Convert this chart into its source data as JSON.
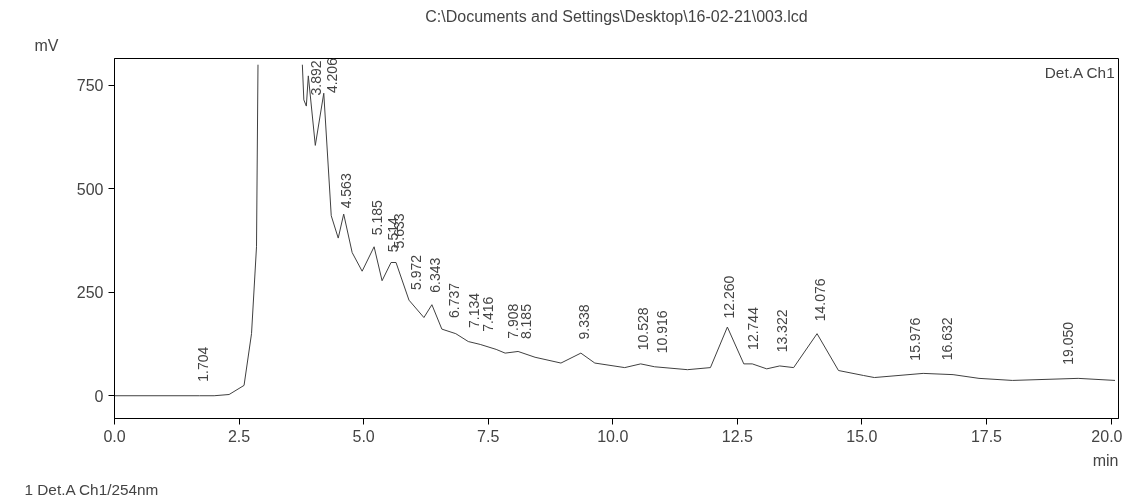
{
  "chart_data": {
    "type": "line",
    "title": "C:\\Documents and Settings\\Desktop\\16-02-21\\003.lcd",
    "xlabel": "min",
    "ylabel": "mV",
    "x": [
      0,
      1.704,
      2.0,
      2.3,
      2.6,
      2.75,
      2.85,
      2.88,
      3.3,
      3.77,
      3.8,
      3.85,
      3.89,
      4.03,
      4.2,
      4.35,
      4.49,
      4.6,
      4.77,
      4.97,
      5.21,
      5.37,
      5.55,
      5.65,
      5.91,
      6.21,
      6.37,
      6.57,
      6.85,
      7.1,
      7.34,
      7.66,
      7.84,
      8.1,
      8.44,
      8.96,
      9.36,
      9.64,
      10.24,
      10.56,
      10.84,
      11.5,
      11.96,
      12.3,
      12.63,
      12.8,
      13.09,
      13.35,
      13.63,
      14.1,
      14.53,
      15.03,
      15.25,
      16.23,
      16.83,
      17.35,
      18.02,
      19.34,
      20.08
    ],
    "series": [
      {
        "color": "#404040",
        "values": [
          0,
          0,
          0,
          3,
          25,
          150,
          360,
          800,
          null,
          800,
          715,
          700,
          773,
          605,
          731,
          435,
          381,
          439,
          346,
          301,
          360,
          278,
          322,
          322,
          231,
          189,
          220,
          161,
          150,
          131,
          124,
          112,
          103,
          107,
          93,
          79,
          103,
          79,
          68,
          77,
          70,
          63,
          68,
          166,
          77,
          77,
          65,
          72,
          68,
          150,
          61,
          49,
          44,
          54,
          51,
          42,
          37,
          42,
          37
        ]
      }
    ],
    "xlim": [
      0,
      20.15
    ],
    "ylim": [
      -55,
      815
    ],
    "xticks": [
      {
        "value": 0,
        "label": "0.0"
      },
      {
        "value": 2.5,
        "label": "2.5"
      },
      {
        "value": 5,
        "label": "5.0"
      },
      {
        "value": 7.5,
        "label": "7.5"
      },
      {
        "value": 10,
        "label": "10.0"
      },
      {
        "value": 12.5,
        "label": "12.5"
      },
      {
        "value": 15,
        "label": "15.0"
      },
      {
        "value": 17.5,
        "label": "17.5"
      },
      {
        "value": 20,
        "label": "20.0"
      }
    ],
    "yticks": [
      0,
      250,
      500,
      750
    ],
    "grid": false,
    "annotations": [
      "Det.A Ch1",
      "1 Det.A Ch1/254nm",
      {
        "text": "1.704",
        "x": 1.704,
        "y": 0
      },
      {
        "text": "3.892",
        "x": 3.892,
        "y": 771
      },
      {
        "text": "4.206",
        "x": 4.206,
        "y": 719
      },
      {
        "text": "4.563",
        "x": 4.563,
        "y": 419
      },
      {
        "text": "5.185",
        "x": 5.185,
        "y": 354
      },
      {
        "text": "5.514",
        "x": 5.514,
        "y": 313
      },
      {
        "text": "5.633",
        "x": 5.633,
        "y": 322
      },
      {
        "text": "5.972",
        "x": 5.972,
        "y": 222
      },
      {
        "text": "6.343",
        "x": 6.343,
        "y": 215
      },
      {
        "text": "6.737",
        "x": 6.737,
        "y": 154
      },
      {
        "text": "7.134",
        "x": 7.134,
        "y": 130
      },
      {
        "text": "7.416",
        "x": 7.416,
        "y": 121
      },
      {
        "text": "7.908",
        "x": 7.908,
        "y": 104
      },
      {
        "text": "8.185",
        "x": 8.185,
        "y": 103
      },
      {
        "text": "9.338",
        "x": 9.338,
        "y": 102
      },
      {
        "text": "10.528",
        "x": 10.528,
        "y": 76
      },
      {
        "text": "10.916",
        "x": 10.916,
        "y": 69
      },
      {
        "text": "12.260",
        "x": 12.26,
        "y": 153
      },
      {
        "text": "12.744",
        "x": 12.744,
        "y": 77
      },
      {
        "text": "13.322",
        "x": 13.322,
        "y": 71
      },
      {
        "text": "14.076",
        "x": 14.076,
        "y": 146
      },
      {
        "text": "15.976",
        "x": 15.976,
        "y": 51
      },
      {
        "text": "16.632",
        "x": 16.632,
        "y": 52
      },
      {
        "text": "19.050",
        "x": 19.05,
        "y": 41
      }
    ]
  }
}
